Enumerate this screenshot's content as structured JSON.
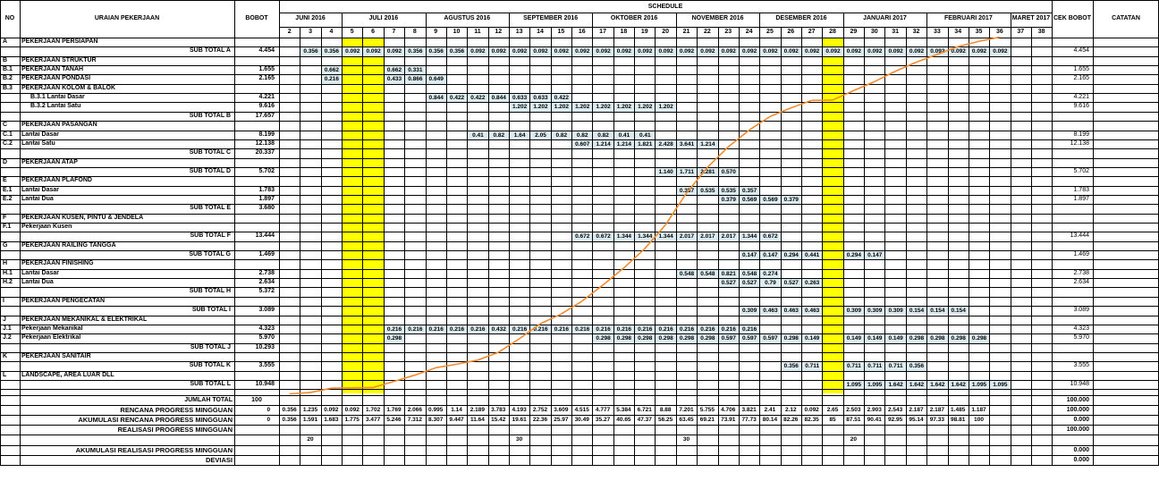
{
  "header": {
    "no": "NO",
    "uraian": "URAIAN PEKERJAAN",
    "bobot": "BOBOT",
    "schedule": "SCHEDULE",
    "cek": "CEK BOBOT",
    "catatan": "CATATAN"
  },
  "months": [
    {
      "name": "JUNI 2016",
      "from": 2,
      "to": 4
    },
    {
      "name": "JULI 2016",
      "from": 5,
      "to": 8
    },
    {
      "name": "AGUSTUS 2016",
      "from": 9,
      "to": 12
    },
    {
      "name": "SEPTEMBER 2016",
      "from": 13,
      "to": 16
    },
    {
      "name": "OKTOBER 2016",
      "from": 17,
      "to": 20
    },
    {
      "name": "NOVEMBER 2016",
      "from": 21,
      "to": 24
    },
    {
      "name": "DESEMBER 2016",
      "from": 25,
      "to": 28
    },
    {
      "name": "JANUARI 2017",
      "from": 29,
      "to": 32
    },
    {
      "name": "FEBRUARI 2017",
      "from": 33,
      "to": 36
    },
    {
      "name": "MARET 2017",
      "from": 37,
      "to": 38
    }
  ],
  "weeks": [
    2,
    3,
    4,
    5,
    6,
    7,
    8,
    9,
    10,
    11,
    12,
    13,
    14,
    15,
    16,
    17,
    18,
    19,
    20,
    21,
    22,
    23,
    24,
    25,
    26,
    27,
    28,
    29,
    30,
    31,
    32,
    33,
    34,
    35,
    36,
    37,
    38
  ],
  "highlight_weeks": [
    5,
    6,
    28
  ],
  "rows": [
    {
      "no": "A",
      "label": "PEKERJAAN PERSIAPAN",
      "type": "section"
    },
    {
      "label": "SUB TOTAL A",
      "type": "subtotal",
      "bobot": "4.454",
      "cek": "4.454",
      "cells": [
        [
          3,
          "0.356"
        ],
        [
          4,
          "0.356"
        ],
        [
          5,
          "0.092"
        ],
        [
          6,
          "0.092"
        ],
        [
          7,
          "0.092"
        ],
        [
          8,
          "0.356"
        ],
        [
          9,
          "0.356"
        ],
        [
          10,
          "0.356"
        ],
        [
          11,
          "0.092"
        ],
        [
          12,
          "0.092"
        ],
        [
          13,
          "0.092"
        ],
        [
          14,
          "0.092"
        ],
        [
          15,
          "0.092"
        ],
        [
          16,
          "0.092"
        ],
        [
          17,
          "0.092"
        ],
        [
          18,
          "0.092"
        ],
        [
          19,
          "0.092"
        ],
        [
          20,
          "0.092"
        ],
        [
          21,
          "0.092"
        ],
        [
          22,
          "0.092"
        ],
        [
          23,
          "0.092"
        ],
        [
          24,
          "0.092"
        ],
        [
          25,
          "0.092"
        ],
        [
          26,
          "0.092"
        ],
        [
          27,
          "0.092"
        ],
        [
          28,
          "0.092"
        ],
        [
          29,
          "0.092"
        ],
        [
          30,
          "0.092"
        ],
        [
          31,
          "0.092"
        ],
        [
          32,
          "0.092"
        ],
        [
          33,
          "0.092"
        ],
        [
          34,
          "0.092"
        ],
        [
          35,
          "0.092"
        ],
        [
          36,
          "0.092"
        ]
      ]
    },
    {
      "no": "B",
      "label": "PEKERJAAN STRUKTUR",
      "type": "section"
    },
    {
      "no": "B.1",
      "label": "PEKERJAAN TANAH",
      "type": "item",
      "bobot": "1.655",
      "cek": "1.655",
      "cells": [
        [
          4,
          "0.662"
        ],
        [
          7,
          "0.662"
        ],
        [
          8,
          "0.331"
        ]
      ]
    },
    {
      "no": "B.2",
      "label": "PEKERJAAN PONDASI",
      "type": "item",
      "bobot": "2.165",
      "cek": "2.165",
      "cells": [
        [
          4,
          "0.216"
        ],
        [
          7,
          "0.433"
        ],
        [
          8,
          "0.866"
        ],
        [
          9,
          "0.649"
        ]
      ]
    },
    {
      "no": "B.3",
      "label": "PEKERJAAN KOLOM & BALOK",
      "type": "section"
    },
    {
      "label": "B.3.1 Lantai Dasar",
      "type": "sub",
      "bobot": "4.221",
      "cek": "4.221",
      "cells": [
        [
          9,
          "0.844"
        ],
        [
          10,
          "0.422"
        ],
        [
          11,
          "0.422"
        ],
        [
          12,
          "0.844"
        ],
        [
          13,
          "0.633"
        ],
        [
          14,
          "0.633"
        ],
        [
          15,
          "0.422"
        ]
      ]
    },
    {
      "label": "B.3.2 Lantai Satu",
      "type": "sub",
      "bobot": "9.616",
      "cek": "9.616",
      "cells": [
        [
          13,
          "1.202"
        ],
        [
          14,
          "1.202"
        ],
        [
          15,
          "1.202"
        ],
        [
          16,
          "1.202"
        ],
        [
          17,
          "1.202"
        ],
        [
          18,
          "1.202"
        ],
        [
          19,
          "1.202"
        ],
        [
          20,
          "1.202"
        ]
      ]
    },
    {
      "label": "SUB TOTAL B",
      "type": "subtotal",
      "bobot": "17.657",
      "cells": []
    },
    {
      "no": "C",
      "label": "PEKERJAAN PASANGAN",
      "type": "section"
    },
    {
      "no": "C.1",
      "label": "Lantai Dasar",
      "type": "item",
      "bobot": "8.199",
      "cek": "8.199",
      "cells": [
        [
          11,
          "0.41"
        ],
        [
          12,
          "0.82"
        ],
        [
          13,
          "1.64"
        ],
        [
          14,
          "2.05"
        ],
        [
          15,
          "0.82"
        ],
        [
          16,
          "0.82"
        ],
        [
          17,
          "0.82"
        ],
        [
          18,
          "0.41"
        ],
        [
          19,
          "0.41"
        ]
      ]
    },
    {
      "no": "C.2",
      "label": "Lantai Satu",
      "type": "item",
      "bobot": "12.138",
      "cek": "12.138",
      "cells": [
        [
          16,
          "0.607"
        ],
        [
          17,
          "1.214"
        ],
        [
          18,
          "1.214"
        ],
        [
          19,
          "1.821"
        ],
        [
          20,
          "2.428"
        ],
        [
          21,
          "3.641"
        ],
        [
          22,
          "1.214"
        ]
      ]
    },
    {
      "label": "SUB TOTAL C",
      "type": "subtotal",
      "bobot": "20.337",
      "cells": []
    },
    {
      "no": "D",
      "label": "PEKERJAAN ATAP",
      "type": "section"
    },
    {
      "label": "SUB TOTAL D",
      "type": "subtotal",
      "bobot": "5.702",
      "cek": "5.702",
      "cells": [
        [
          20,
          "1.140"
        ],
        [
          21,
          "1.711"
        ],
        [
          22,
          "2.281"
        ],
        [
          23,
          "0.570"
        ]
      ]
    },
    {
      "no": "E",
      "label": "PEKERJAAN PLAFOND",
      "type": "section"
    },
    {
      "no": "E.1",
      "label": "Lantai Dasar",
      "type": "item",
      "bobot": "1.783",
      "cek": "1.783",
      "cells": [
        [
          21,
          "0.357"
        ],
        [
          22,
          "0.535"
        ],
        [
          23,
          "0.535"
        ],
        [
          24,
          "0.357"
        ]
      ]
    },
    {
      "no": "E.2",
      "label": "Lantai Dua",
      "type": "item",
      "bobot": "1.897",
      "cek": "1.897",
      "cells": [
        [
          23,
          "0.379"
        ],
        [
          24,
          "0.569"
        ],
        [
          25,
          "0.569"
        ],
        [
          26,
          "0.379"
        ]
      ]
    },
    {
      "label": "SUB TOTAL E",
      "type": "subtotal",
      "bobot": "3.680",
      "cells": []
    },
    {
      "no": "F",
      "label": "PEKERJAAN KUSEN, PINTU & JENDELA",
      "type": "section"
    },
    {
      "no": "F.1",
      "label": "Pekerjaan Kusen",
      "type": "item",
      "cells": []
    },
    {
      "label": "SUB TOTAL F",
      "type": "subtotal",
      "bobot": "13.444",
      "cek": "13.444",
      "cells": [
        [
          16,
          "0.672"
        ],
        [
          17,
          "0.672"
        ],
        [
          18,
          "1.344"
        ],
        [
          19,
          "1.344"
        ],
        [
          20,
          "1.344"
        ],
        [
          21,
          "2.017"
        ],
        [
          22,
          "2.017"
        ],
        [
          23,
          "2.017"
        ],
        [
          24,
          "1.344"
        ],
        [
          25,
          "0.672"
        ]
      ]
    },
    {
      "no": "G",
      "label": "PEKERJAAN RAILING TANGGA",
      "type": "section"
    },
    {
      "label": "SUB TOTAL G",
      "type": "subtotal",
      "bobot": "1.469",
      "cek": "1.469",
      "cells": [
        [
          24,
          "0.147"
        ],
        [
          25,
          "0.147"
        ],
        [
          26,
          "0.294"
        ],
        [
          27,
          "0.441"
        ],
        [
          29,
          "0.294"
        ],
        [
          30,
          "0.147"
        ]
      ]
    },
    {
      "no": "H",
      "label": "PEKERJAAN FINISHING",
      "type": "section"
    },
    {
      "no": "H.1",
      "label": "Lantai Dasar",
      "type": "item",
      "bobot": "2.738",
      "cek": "2.738",
      "cells": [
        [
          21,
          "0.548"
        ],
        [
          22,
          "0.548"
        ],
        [
          23,
          "0.821"
        ],
        [
          24,
          "0.548"
        ],
        [
          25,
          "0.274"
        ]
      ]
    },
    {
      "no": "H.2",
      "label": "Lantai Dua",
      "type": "item",
      "bobot": "2.634",
      "cek": "2.634",
      "cells": [
        [
          23,
          "0.527"
        ],
        [
          24,
          "0.527"
        ],
        [
          25,
          "0.79"
        ],
        [
          26,
          "0.527"
        ],
        [
          27,
          "0.263"
        ]
      ]
    },
    {
      "label": "SUB TOTAL H",
      "type": "subtotal",
      "bobot": "5.372",
      "cells": []
    },
    {
      "no": "I",
      "label": "PEKERJAAN PENGECATAN",
      "type": "section"
    },
    {
      "label": "SUB TOTAL I",
      "type": "subtotal",
      "bobot": "3.089",
      "cek": "3.089",
      "cells": [
        [
          24,
          "0.309"
        ],
        [
          25,
          "0.463"
        ],
        [
          26,
          "0.463"
        ],
        [
          27,
          "0.463"
        ],
        [
          29,
          "0.309"
        ],
        [
          30,
          "0.309"
        ],
        [
          31,
          "0.309"
        ],
        [
          32,
          "0.154"
        ],
        [
          33,
          "0.154"
        ],
        [
          34,
          "0.154"
        ]
      ]
    },
    {
      "no": "J",
      "label": "PEKERJAAN MEKANIKAL & ELEKTRIKAL",
      "type": "section"
    },
    {
      "no": "J.1",
      "label": "Pekerjaan Mekanikal",
      "type": "item",
      "bobot": "4.323",
      "cek": "4.323",
      "cells": [
        [
          7,
          "0.216"
        ],
        [
          8,
          "0.216"
        ],
        [
          9,
          "0.216"
        ],
        [
          10,
          "0.216"
        ],
        [
          11,
          "0.216"
        ],
        [
          12,
          "0.432"
        ],
        [
          13,
          "0.216"
        ],
        [
          14,
          "0.216"
        ],
        [
          15,
          "0.216"
        ],
        [
          16,
          "0.216"
        ],
        [
          17,
          "0.216"
        ],
        [
          18,
          "0.216"
        ],
        [
          19,
          "0.216"
        ],
        [
          20,
          "0.216"
        ],
        [
          21,
          "0.216"
        ],
        [
          22,
          "0.216"
        ],
        [
          23,
          "0.216"
        ],
        [
          24,
          "0.216"
        ]
      ]
    },
    {
      "no": "J.2",
      "label": "Pekerjaan Elektrikal",
      "type": "item",
      "bobot": "5.970",
      "cek": "5.970",
      "cells": [
        [
          7,
          "0.298"
        ],
        [
          17,
          "0.298"
        ],
        [
          18,
          "0.298"
        ],
        [
          19,
          "0.298"
        ],
        [
          20,
          "0.298"
        ],
        [
          21,
          "0.298"
        ],
        [
          22,
          "0.298"
        ],
        [
          23,
          "0.597"
        ],
        [
          24,
          "0.597"
        ],
        [
          25,
          "0.597"
        ],
        [
          26,
          "0.298"
        ],
        [
          27,
          "0.149"
        ],
        [
          29,
          "0.149"
        ],
        [
          30,
          "0.149"
        ],
        [
          31,
          "0.149"
        ],
        [
          32,
          "0.298"
        ],
        [
          33,
          "0.298"
        ],
        [
          34,
          "0.298"
        ],
        [
          35,
          "0.298"
        ]
      ]
    },
    {
      "label": "SUB TOTAL J",
      "type": "subtotal",
      "bobot": "10.293",
      "cells": []
    },
    {
      "no": "K",
      "label": "PEKERJAAN SANITAIR",
      "type": "section"
    },
    {
      "label": "SUB TOTAL K",
      "type": "subtotal",
      "bobot": "3.555",
      "cek": "3.555",
      "cells": [
        [
          26,
          "0.356"
        ],
        [
          27,
          "0.711"
        ],
        [
          29,
          "0.711"
        ],
        [
          30,
          "0.711"
        ],
        [
          31,
          "0.711"
        ],
        [
          32,
          "0.356"
        ]
      ]
    },
    {
      "no": "L",
      "label": "LANDSCAPE, AREA LUAR DLL",
      "type": "section"
    },
    {
      "label": "SUB TOTAL L",
      "type": "subtotal",
      "bobot": "10.948",
      "cek": "10.948",
      "cells": [
        [
          29,
          "1.095"
        ],
        [
          30,
          "1.095"
        ],
        [
          31,
          "1.642"
        ],
        [
          32,
          "1.642"
        ],
        [
          33,
          "1.642"
        ],
        [
          34,
          "1.642"
        ],
        [
          35,
          "1.095"
        ],
        [
          36,
          "1.095"
        ]
      ]
    }
  ],
  "footer": {
    "jumlah_label": "JUMLAH TOTAL",
    "jumlah_bobot": "100",
    "jumlah_cek": "100.000",
    "rencana_label": "RENCANA PROGRESS MINGGUAN",
    "rencana_cek": "100.000",
    "rencana": [
      "0",
      "0.356",
      "1.235",
      "0.092",
      "0.092",
      "1.702",
      "1.769",
      "2.066",
      "0.995",
      "1.14",
      "2.189",
      "3.783",
      "4.193",
      "2.752",
      "3.609",
      "4.515",
      "4.777",
      "5.384",
      "6.721",
      "8.88",
      "7.201",
      "5.755",
      "4.706",
      "3.821",
      "2.41",
      "2.12",
      "0.092",
      "2.65",
      "2.503",
      "2.903",
      "2.543",
      "2.187",
      "2.187",
      "1.485",
      "1.187"
    ],
    "akum_label": "AKUMULASI RENCANA PROGRESS MINGGUAN",
    "akum_cek": "0.000",
    "akum": [
      "0",
      "0.356",
      "1.591",
      "1.683",
      "1.775",
      "3.477",
      "5.246",
      "7.312",
      "8.307",
      "9.447",
      "11.64",
      "15.42",
      "19.61",
      "22.36",
      "25.97",
      "30.49",
      "35.27",
      "40.65",
      "47.37",
      "56.25",
      "63.45",
      "69.21",
      "73.91",
      "77.73",
      "80.14",
      "82.26",
      "82.35",
      "85",
      "87.51",
      "90.41",
      "92.95",
      "95.14",
      "97.33",
      "98.81",
      "100"
    ],
    "realisasi_label": "REALISASI PROGRESS MINGGUAN",
    "realisasi_cek": "100.000",
    "realisasi_marks": [
      [
        3,
        "20"
      ],
      [
        13,
        "30"
      ],
      [
        21,
        "30"
      ],
      [
        29,
        "20"
      ]
    ],
    "akum_real_label": "AKUMULASI REALISASI PROGRESS MINGGUAN",
    "akum_real_cek": "0.000",
    "deviasi_label": "DEVIASI",
    "deviasi_cek": "0.000"
  },
  "chart_data": {
    "type": "line",
    "x": [
      2,
      3,
      4,
      5,
      6,
      7,
      8,
      9,
      10,
      11,
      12,
      13,
      14,
      15,
      16,
      17,
      18,
      19,
      20,
      21,
      22,
      23,
      24,
      25,
      26,
      27,
      28,
      29,
      30,
      31,
      32,
      33,
      34,
      35,
      36
    ],
    "series": [
      {
        "values": [
          0,
          0.356,
          1.591,
          1.683,
          1.775,
          3.477,
          5.246,
          7.312,
          8.307,
          9.447,
          11.64,
          15.42,
          19.61,
          22.36,
          25.97,
          30.49,
          35.27,
          40.65,
          47.37,
          56.25,
          63.45,
          69.21,
          73.91,
          77.73,
          80.14,
          82.26,
          82.35,
          85,
          87.51,
          90.41,
          92.95,
          95.14,
          97.33,
          98.81,
          100
        ]
      }
    ],
    "ylim": [
      0,
      100
    ],
    "color": "#f28a2c"
  }
}
